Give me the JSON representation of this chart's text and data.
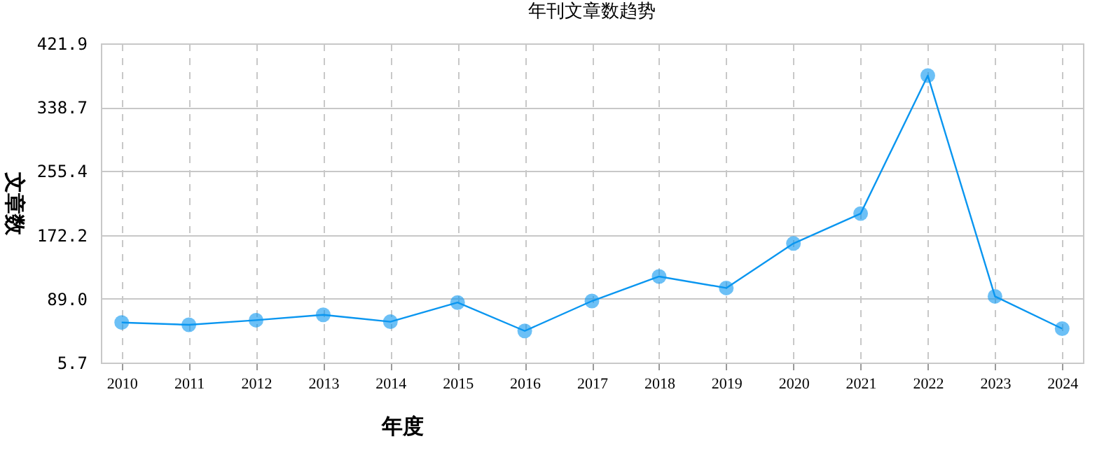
{
  "chart_data": {
    "type": "line",
    "title": "年刊文章数趋势",
    "xlabel": "年度",
    "ylabel": "文章数",
    "categories": [
      "2010",
      "2011",
      "2012",
      "2013",
      "2014",
      "2015",
      "2016",
      "2017",
      "2018",
      "2019",
      "2020",
      "2021",
      "2022",
      "2023",
      "2024"
    ],
    "series": [
      {
        "color": "#0a96f0",
        "values": [
          58,
          55,
          61,
          68,
          59,
          84,
          47,
          86,
          118,
          103,
          161,
          200,
          380,
          92,
          50
        ]
      }
    ],
    "ylim": [
      5.7,
      421.9
    ],
    "yticks": [
      5.7,
      {
        "value": 89,
        "label": "89.0"
      },
      172.2,
      255.4,
      338.7,
      421.9
    ],
    "grid": true,
    "marker": "circle",
    "line_style": "solid"
  }
}
